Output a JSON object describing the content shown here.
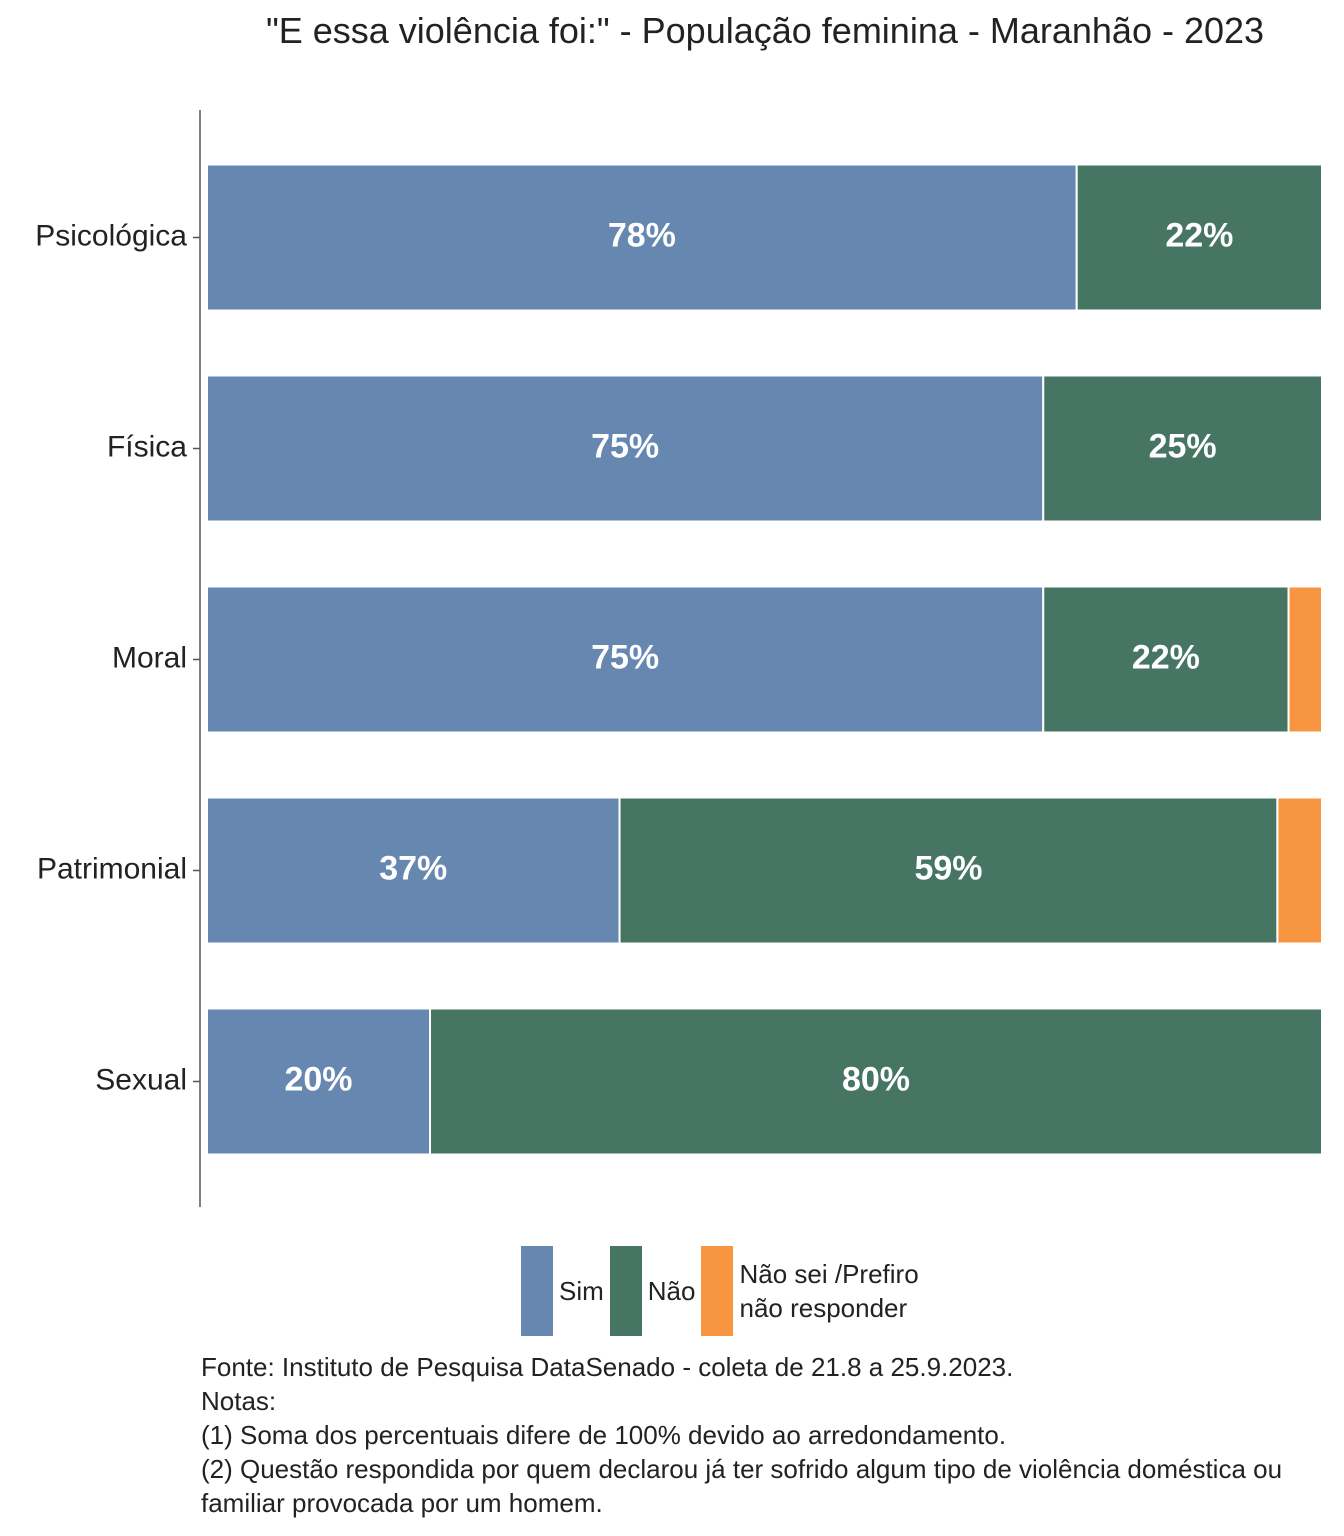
{
  "chart_data": {
    "type": "stacked_bar_horizontal",
    "title": "\"E essa violência foi:\" - População feminina - Maranhão - 2023",
    "categories": [
      "Psicológica",
      "Física",
      "Moral",
      "Patrimonial",
      "Sexual"
    ],
    "xlim": [
      0,
      100
    ],
    "series": [
      {
        "name": "Sim",
        "color": "#6688b0",
        "values": [
          78,
          75,
          75,
          37,
          20
        ],
        "value_labels": [
          "78%",
          "75%",
          "75%",
          "37%",
          "20%"
        ]
      },
      {
        "name": "Não",
        "color": "#467563",
        "values": [
          22,
          25,
          22,
          59,
          80
        ],
        "value_labels": [
          "22%",
          "25%",
          "22%",
          "59%",
          "80%"
        ]
      },
      {
        "name": "Não sei /Prefiro não responder",
        "color": "#f89540",
        "values": [
          0,
          0,
          3,
          4,
          0
        ],
        "value_labels": [
          null,
          null,
          null,
          null,
          null
        ]
      }
    ],
    "source": "Fonte: Instituto de Pesquisa DataSenado - coleta de 21.8 a 25.9.2023.",
    "notes_title": "Notas:",
    "notes": [
      "(1) Soma dos percentuais difere de 100% devido ao arredondamento.",
      "(2) Questão respondida por quem declarou já ter sofrido algum tipo de violência doméstica ou familiar provocada por um homem."
    ]
  }
}
